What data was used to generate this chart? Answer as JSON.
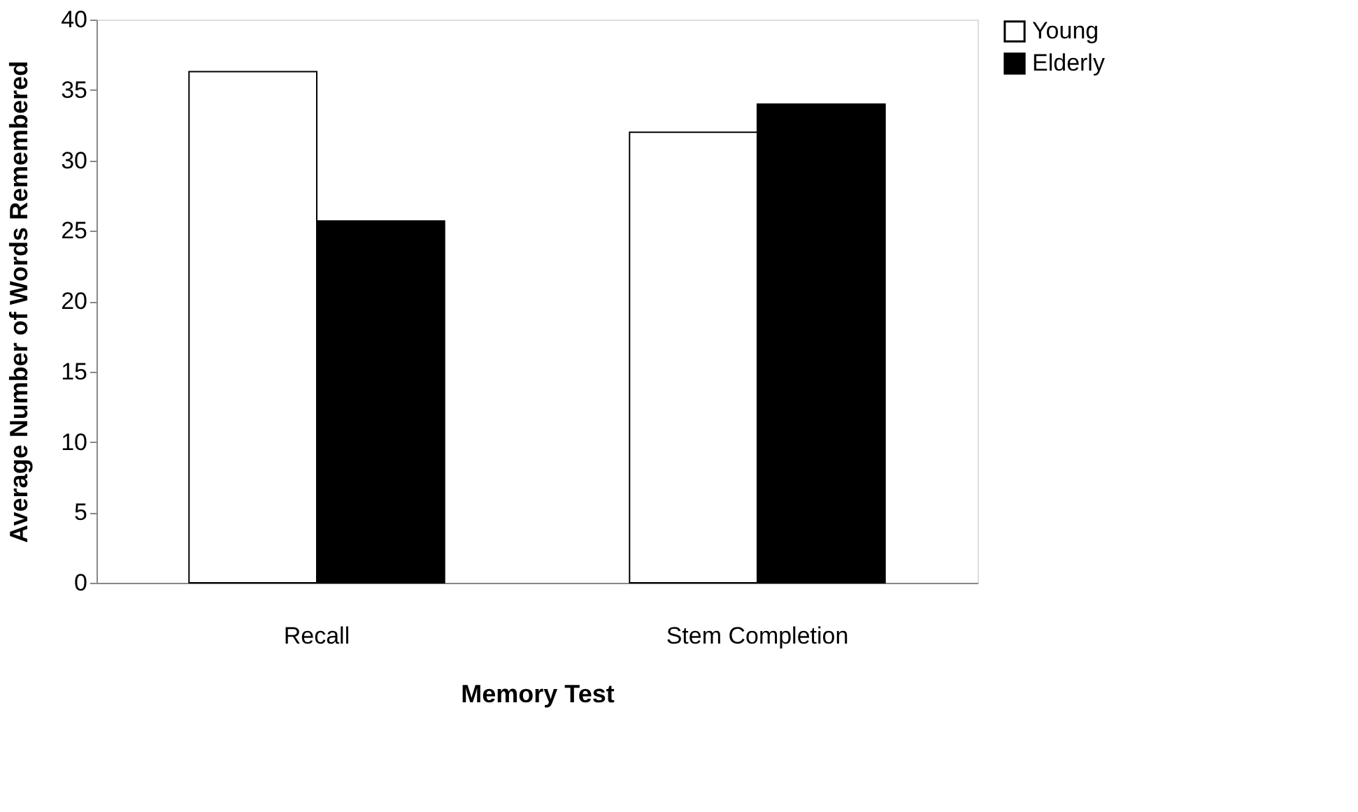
{
  "chart_data": {
    "type": "bar",
    "xlabel": "Memory Test",
    "ylabel": "Average Number of Words Remembered",
    "categories": [
      "Recall",
      "Stem Completion"
    ],
    "series": [
      {
        "name": "Young",
        "color": "#ffffff",
        "values": [
          36.3,
          32
        ]
      },
      {
        "name": "Elderly",
        "color": "#000000",
        "values": [
          25.7,
          34
        ]
      }
    ],
    "ylim": [
      0,
      40
    ],
    "yticks": [
      0,
      5,
      10,
      15,
      20,
      25,
      30,
      35,
      40
    ],
    "grid": false,
    "legend": "right"
  }
}
